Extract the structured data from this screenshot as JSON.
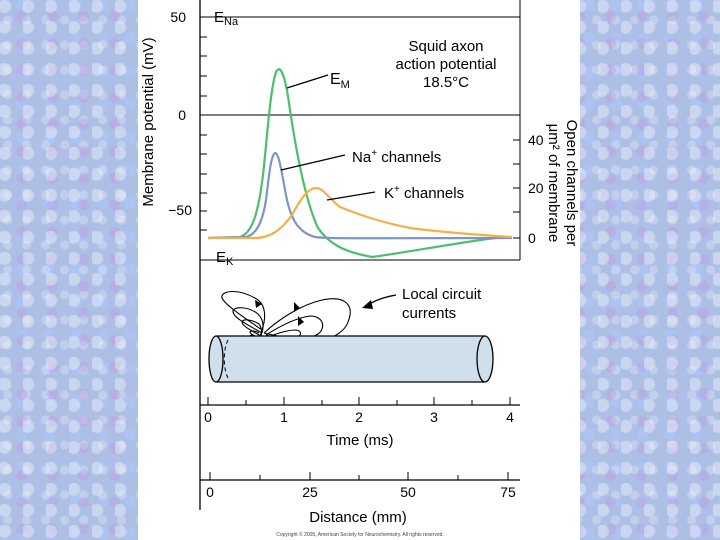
{
  "figure": {
    "y_axis_label": "Membrane potential (mV)",
    "right_axis_label_line1": "Open channels per",
    "right_axis_label_line2": "μm² of membrane",
    "y_ticks": [
      "50",
      "0",
      "−50"
    ],
    "right_ticks": [
      "40",
      "20",
      "0"
    ],
    "e_na": {
      "base": "E",
      "sub": "Na"
    },
    "e_k": {
      "base": "E",
      "sub": "K"
    },
    "title_lines": [
      "Squid axon",
      "action potential",
      "18.5°C"
    ],
    "labels": {
      "em": {
        "base": "E",
        "sub": "M"
      },
      "na_channels": {
        "base": "Na",
        "sup": "+",
        "rest": " channels"
      },
      "k_channels": {
        "base": "K",
        "sup": "+",
        "rest": " channels"
      },
      "local_line1": "Local circuit",
      "local_line2": "currents"
    },
    "time_ticks": [
      "0",
      "1",
      "2",
      "3",
      "4"
    ],
    "time_label": "Time (ms)",
    "distance_ticks": [
      "0",
      "25",
      "50",
      "75"
    ],
    "distance_label": "Distance (mm)",
    "copyright": "Copyright © 2005, American Society for Neurochemistry. All rights reserved."
  },
  "colors": {
    "membrane_potential": "#4cbf6b",
    "na_channels": "#7e93c6",
    "k_channels": "#f2b04a",
    "axon_fill": "#cfe0ec"
  }
}
